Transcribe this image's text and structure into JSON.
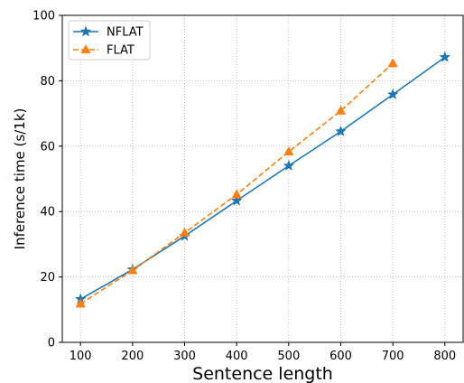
{
  "chart_data": {
    "type": "line",
    "xlabel": "Sentence length",
    "ylabel": "Inference time (s/1k)",
    "xlim": [
      65,
      835
    ],
    "ylim": [
      0,
      100
    ],
    "x_ticks": [
      100,
      200,
      300,
      400,
      500,
      600,
      700,
      800
    ],
    "y_ticks": [
      0,
      20,
      40,
      60,
      80,
      100
    ],
    "grid": true,
    "legend_position": "top-left",
    "series": [
      {
        "name": "NFLAT",
        "color": "#1f77b4",
        "marker": "star",
        "line_style": "solid",
        "x": [
          100,
          200,
          300,
          400,
          500,
          600,
          700,
          800
        ],
        "y": [
          13.2,
          22.3,
          32.5,
          43.3,
          54.0,
          64.5,
          75.8,
          87.2
        ]
      },
      {
        "name": "FLAT",
        "color": "#ff7f0e",
        "marker": "triangle",
        "line_style": "dashed",
        "x": [
          100,
          200,
          300,
          400,
          500,
          600,
          700
        ],
        "y": [
          11.8,
          22.0,
          33.5,
          45.2,
          58.3,
          70.8,
          85.3
        ]
      }
    ]
  }
}
